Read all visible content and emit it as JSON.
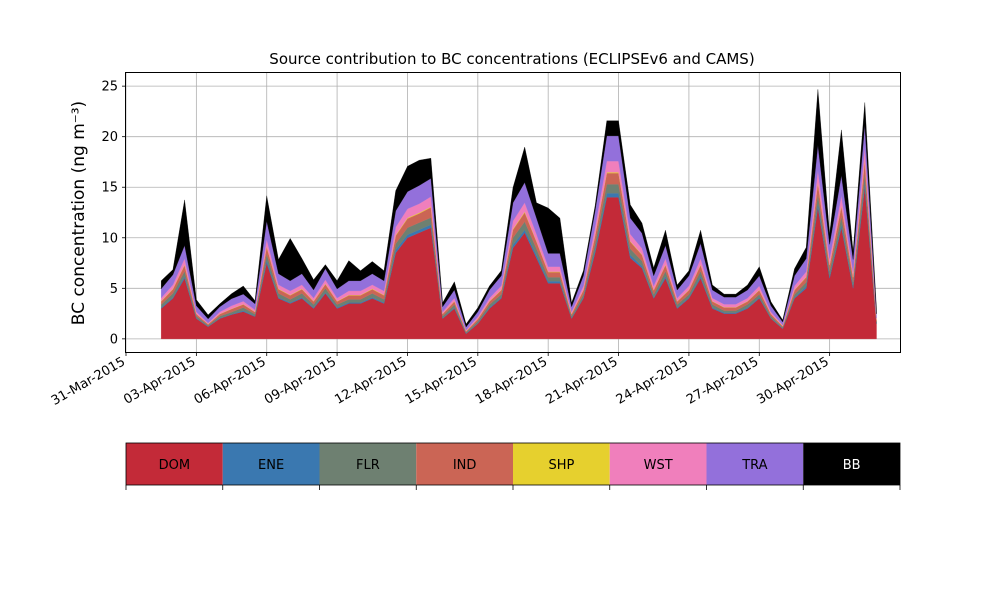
{
  "chart_data": {
    "type": "area",
    "stacked": true,
    "title": "Source contribution to BC concentrations (ECLIPSEv6 and CAMS)",
    "ylabel": "BC concentration (ng m⁻³)",
    "xlabel": "",
    "grid": true,
    "xlim": [
      "2015-03-31",
      "2015-05-03"
    ],
    "ylim": [
      -1.3,
      26.3
    ],
    "yticks": [
      0,
      5,
      10,
      15,
      20,
      25
    ],
    "xtick_dates": [
      "2015-03-31",
      "2015-04-03",
      "2015-04-06",
      "2015-04-09",
      "2015-04-12",
      "2015-04-15",
      "2015-04-18",
      "2015-04-21",
      "2015-04-24",
      "2015-04-27",
      "2015-04-30"
    ],
    "xtick_labels": [
      "31-Mar-2015",
      "03-Apr-2015",
      "06-Apr-2015",
      "09-Apr-2015",
      "12-Apr-2015",
      "15-Apr-2015",
      "18-Apr-2015",
      "21-Apr-2015",
      "24-Apr-2015",
      "27-Apr-2015",
      "30-Apr-2015"
    ],
    "legend_placement": "bottom colorbar",
    "x": [
      "2015-04-01T12:00",
      "2015-04-02T00:00",
      "2015-04-02T12:00",
      "2015-04-03T00:00",
      "2015-04-03T12:00",
      "2015-04-04T00:00",
      "2015-04-04T12:00",
      "2015-04-05T00:00",
      "2015-04-05T12:00",
      "2015-04-06T00:00",
      "2015-04-06T12:00",
      "2015-04-07T00:00",
      "2015-04-07T12:00",
      "2015-04-08T00:00",
      "2015-04-08T12:00",
      "2015-04-09T00:00",
      "2015-04-09T12:00",
      "2015-04-10T00:00",
      "2015-04-10T12:00",
      "2015-04-11T00:00",
      "2015-04-11T12:00",
      "2015-04-12T00:00",
      "2015-04-12T12:00",
      "2015-04-13T00:00",
      "2015-04-13T12:00",
      "2015-04-14T00:00",
      "2015-04-14T12:00",
      "2015-04-15T00:00",
      "2015-04-15T12:00",
      "2015-04-16T00:00",
      "2015-04-16T12:00",
      "2015-04-17T00:00",
      "2015-04-17T12:00",
      "2015-04-18T00:00",
      "2015-04-18T12:00",
      "2015-04-19T00:00",
      "2015-04-19T12:00",
      "2015-04-20T00:00",
      "2015-04-20T12:00",
      "2015-04-21T00:00",
      "2015-04-21T12:00",
      "2015-04-22T00:00",
      "2015-04-22T12:00",
      "2015-04-23T00:00",
      "2015-04-23T12:00",
      "2015-04-24T00:00",
      "2015-04-24T12:00",
      "2015-04-25T00:00",
      "2015-04-25T12:00",
      "2015-04-26T00:00",
      "2015-04-26T12:00",
      "2015-04-27T00:00",
      "2015-04-27T12:00",
      "2015-04-28T00:00",
      "2015-04-28T12:00",
      "2015-04-29T00:00",
      "2015-04-29T12:00",
      "2015-04-30T00:00",
      "2015-04-30T12:00",
      "2015-05-01T00:00",
      "2015-05-01T12:00",
      "2015-05-02T00:00"
    ],
    "series": [
      {
        "name": "DOM",
        "color": "#c32a38",
        "values": [
          3.0,
          4.0,
          6.0,
          2.0,
          1.2,
          2.0,
          2.4,
          2.7,
          2.2,
          7.5,
          4.0,
          3.5,
          4.0,
          3.0,
          4.5,
          3.0,
          3.5,
          3.5,
          4.0,
          3.5,
          8.5,
          10.0,
          10.5,
          11.0,
          2.0,
          3.0,
          0.5,
          1.5,
          3.0,
          4.0,
          9.0,
          10.5,
          8.0,
          5.5,
          5.5,
          2.0,
          4.0,
          8.5,
          14.0,
          14.0,
          8.0,
          7.0,
          4.0,
          6.0,
          3.0,
          4.0,
          6.0,
          3.0,
          2.5,
          2.5,
          3.0,
          4.0,
          2.0,
          1.0,
          4.0,
          5.0,
          13.0,
          6.0,
          11.0,
          5.0,
          15.0,
          1.5
        ]
      },
      {
        "name": "ENE",
        "color": "#3a78b0",
        "values": [
          0.1,
          0.1,
          0.2,
          0.05,
          0.05,
          0.05,
          0.05,
          0.1,
          0.05,
          0.3,
          0.1,
          0.1,
          0.1,
          0.1,
          0.1,
          0.1,
          0.1,
          0.1,
          0.1,
          0.1,
          0.3,
          0.3,
          0.3,
          0.3,
          0.05,
          0.1,
          0.05,
          0.05,
          0.1,
          0.1,
          0.3,
          0.3,
          0.3,
          0.2,
          0.2,
          0.05,
          0.1,
          0.3,
          0.4,
          0.4,
          0.3,
          0.2,
          0.1,
          0.2,
          0.1,
          0.1,
          0.2,
          0.1,
          0.1,
          0.1,
          0.1,
          0.1,
          0.05,
          0.05,
          0.1,
          0.2,
          0.4,
          0.2,
          0.3,
          0.2,
          0.4,
          0.05
        ]
      },
      {
        "name": "FLR",
        "color": "#6e8071",
        "values": [
          0.3,
          0.4,
          0.5,
          0.2,
          0.1,
          0.2,
          0.2,
          0.3,
          0.2,
          0.6,
          0.4,
          0.3,
          0.4,
          0.3,
          0.4,
          0.3,
          0.3,
          0.3,
          0.4,
          0.3,
          0.6,
          0.7,
          0.7,
          0.7,
          0.2,
          0.3,
          0.1,
          0.2,
          0.3,
          0.3,
          0.7,
          0.8,
          0.6,
          0.4,
          0.4,
          0.2,
          0.3,
          0.6,
          0.9,
          0.9,
          0.6,
          0.5,
          0.3,
          0.5,
          0.3,
          0.3,
          0.5,
          0.3,
          0.2,
          0.2,
          0.3,
          0.3,
          0.2,
          0.1,
          0.3,
          0.4,
          0.9,
          0.5,
          0.8,
          0.4,
          1.0,
          0.1
        ]
      },
      {
        "name": "IND",
        "color": "#cb6555",
        "values": [
          0.3,
          0.4,
          0.6,
          0.2,
          0.1,
          0.2,
          0.3,
          0.3,
          0.2,
          0.7,
          0.4,
          0.4,
          0.4,
          0.3,
          0.4,
          0.3,
          0.4,
          0.4,
          0.4,
          0.4,
          0.8,
          0.9,
          0.9,
          1.0,
          0.2,
          0.3,
          0.1,
          0.2,
          0.3,
          0.4,
          0.8,
          0.9,
          0.7,
          0.5,
          0.5,
          0.2,
          0.4,
          0.8,
          1.1,
          1.1,
          0.7,
          0.6,
          0.4,
          0.6,
          0.3,
          0.4,
          0.6,
          0.3,
          0.3,
          0.3,
          0.3,
          0.4,
          0.2,
          0.1,
          0.4,
          0.5,
          1.1,
          0.6,
          1.0,
          0.5,
          1.2,
          0.2
        ]
      },
      {
        "name": "SHP",
        "color": "#e6d02e",
        "values": [
          0.05,
          0.05,
          0.05,
          0.02,
          0.02,
          0.02,
          0.02,
          0.03,
          0.02,
          0.05,
          0.05,
          0.04,
          0.05,
          0.04,
          0.05,
          0.04,
          0.04,
          0.04,
          0.05,
          0.04,
          0.06,
          0.07,
          0.07,
          0.07,
          0.02,
          0.04,
          0.02,
          0.03,
          0.04,
          0.05,
          0.07,
          0.08,
          0.06,
          0.05,
          0.05,
          0.03,
          0.04,
          0.06,
          0.08,
          0.08,
          0.06,
          0.05,
          0.04,
          0.05,
          0.03,
          0.04,
          0.05,
          0.03,
          0.03,
          0.03,
          0.03,
          0.04,
          0.02,
          0.02,
          0.04,
          0.05,
          0.08,
          0.05,
          0.07,
          0.05,
          0.08,
          0.02
        ]
      },
      {
        "name": "WST",
        "color": "#f07fbc",
        "values": [
          0.3,
          0.4,
          0.6,
          0.2,
          0.1,
          0.2,
          0.3,
          0.3,
          0.2,
          0.7,
          0.4,
          0.4,
          0.4,
          0.3,
          0.4,
          0.3,
          0.4,
          0.4,
          0.4,
          0.4,
          0.8,
          0.9,
          0.9,
          1.0,
          0.2,
          0.3,
          0.1,
          0.2,
          0.3,
          0.4,
          0.8,
          0.9,
          0.7,
          0.5,
          0.5,
          0.2,
          0.4,
          0.8,
          1.1,
          1.1,
          0.7,
          0.6,
          0.4,
          0.6,
          0.3,
          0.4,
          0.6,
          0.3,
          0.3,
          0.3,
          0.3,
          0.4,
          0.2,
          0.1,
          0.4,
          0.5,
          1.2,
          0.6,
          1.0,
          0.5,
          1.3,
          0.2
        ]
      },
      {
        "name": "TRA",
        "color": "#9370db",
        "values": [
          0.9,
          1.0,
          1.3,
          0.6,
          0.4,
          0.5,
          0.7,
          0.7,
          0.6,
          1.8,
          1.1,
          1.0,
          1.1,
          0.8,
          1.1,
          0.9,
          1.0,
          1.0,
          1.1,
          1.0,
          1.6,
          1.7,
          1.8,
          1.8,
          0.5,
          0.8,
          0.3,
          0.5,
          0.8,
          1.0,
          1.8,
          2.0,
          1.6,
          1.3,
          1.3,
          0.5,
          1.0,
          1.6,
          2.5,
          2.5,
          1.6,
          1.5,
          1.0,
          1.3,
          0.8,
          1.0,
          1.5,
          0.8,
          0.7,
          0.7,
          0.8,
          1.0,
          0.6,
          0.3,
          1.0,
          1.3,
          2.5,
          1.4,
          2.0,
          1.2,
          2.2,
          0.4
        ]
      },
      {
        "name": "BB",
        "color": "#000000",
        "values": [
          0.8,
          0.5,
          4.5,
          0.6,
          0.4,
          0.3,
          0.5,
          0.8,
          0.3,
          2.5,
          1.4,
          4.2,
          1.5,
          1.0,
          0.4,
          0.8,
          2.0,
          1.0,
          1.2,
          1.0,
          2.0,
          2.5,
          2.5,
          2.0,
          0.4,
          0.8,
          0.3,
          0.4,
          0.4,
          0.5,
          1.5,
          3.5,
          1.5,
          4.5,
          3.5,
          0.4,
          0.5,
          0.5,
          1.5,
          1.5,
          1.3,
          1.0,
          0.8,
          1.5,
          0.5,
          0.5,
          1.3,
          0.5,
          0.3,
          0.3,
          0.5,
          0.9,
          0.4,
          0.2,
          0.7,
          1.1,
          5.5,
          1.0,
          4.5,
          0.8,
          2.2,
          0.5
        ]
      }
    ],
    "legend_labels": [
      "DOM",
      "ENE",
      "FLR",
      "IND",
      "SHP",
      "WST",
      "TRA",
      "BB"
    ]
  }
}
